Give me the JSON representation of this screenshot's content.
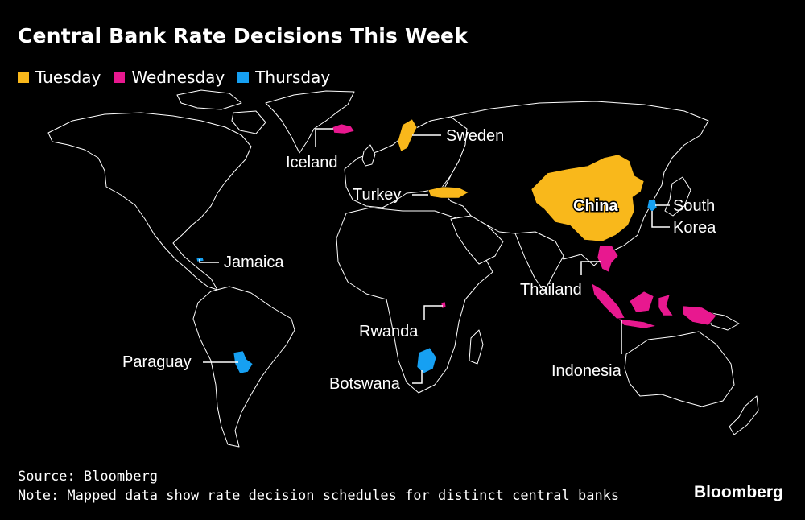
{
  "title": "Central Bank Rate Decisions This Week",
  "legend": [
    {
      "label": "Tuesday",
      "color": "#f9b81b"
    },
    {
      "label": "Wednesday",
      "color": "#e8188f"
    },
    {
      "label": "Thursday",
      "color": "#16a0f2"
    }
  ],
  "countries": [
    {
      "name": "Iceland",
      "day": "Wednesday"
    },
    {
      "name": "Sweden",
      "day": "Tuesday"
    },
    {
      "name": "Turkey",
      "day": "Tuesday"
    },
    {
      "name": "China",
      "day": "Tuesday"
    },
    {
      "name": "South Korea",
      "label_lines": [
        "South",
        "Korea"
      ],
      "day": "Thursday"
    },
    {
      "name": "Jamaica",
      "day": "Thursday"
    },
    {
      "name": "Thailand",
      "day": "Wednesday"
    },
    {
      "name": "Indonesia",
      "day": "Wednesday"
    },
    {
      "name": "Rwanda",
      "day": "Wednesday"
    },
    {
      "name": "Paraguay",
      "day": "Thursday"
    },
    {
      "name": "Botswana",
      "day": "Thursday"
    }
  ],
  "footer": {
    "source": "Source: Bloomberg",
    "note": "Note: Mapped data show rate decision schedules for distinct central banks"
  },
  "brand": "Bloomberg"
}
